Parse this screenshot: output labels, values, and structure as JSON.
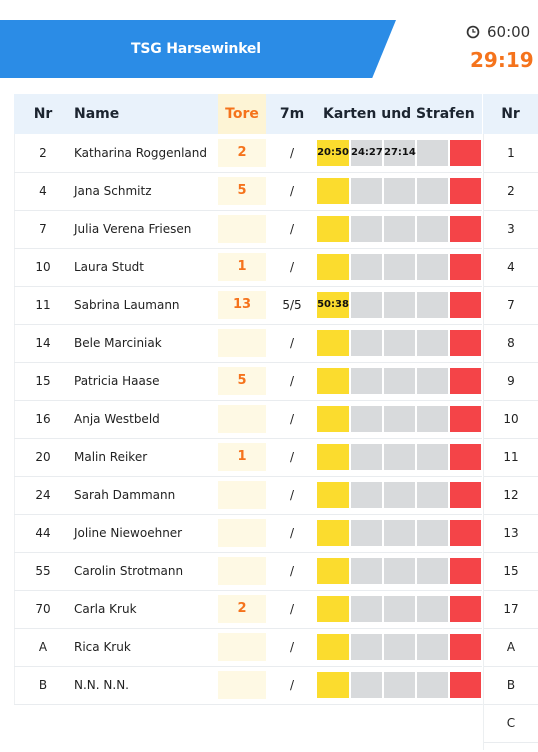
{
  "header": {
    "team_name": "TSG Harsewinkel",
    "total_time": "60:00",
    "current_time": "29:19",
    "clock_icon": "clock-icon",
    "accent": "#2b8ce6",
    "time_color": "#f5731c"
  },
  "table": {
    "headers": {
      "nr": "Nr",
      "name": "Name",
      "tore": "Tore",
      "seven_m": "7m",
      "cards": "Karten und Strafen"
    },
    "rows": [
      {
        "nr": "2",
        "name": "Katharina Roggenland",
        "tore": "2",
        "seven_m": "/",
        "yellow": "20:50",
        "p1": "24:27",
        "p2": "27:14",
        "p3": ""
      },
      {
        "nr": "4",
        "name": "Jana Schmitz",
        "tore": "5",
        "seven_m": "/",
        "yellow": "",
        "p1": "",
        "p2": "",
        "p3": ""
      },
      {
        "nr": "7",
        "name": "Julia Verena Friesen",
        "tore": "",
        "seven_m": "/",
        "yellow": "",
        "p1": "",
        "p2": "",
        "p3": ""
      },
      {
        "nr": "10",
        "name": "Laura Studt",
        "tore": "1",
        "seven_m": "/",
        "yellow": "",
        "p1": "",
        "p2": "",
        "p3": ""
      },
      {
        "nr": "11",
        "name": "Sabrina Laumann",
        "tore": "13",
        "seven_m": "5/5",
        "yellow": "50:38",
        "p1": "",
        "p2": "",
        "p3": ""
      },
      {
        "nr": "14",
        "name": "Bele Marciniak",
        "tore": "",
        "seven_m": "/",
        "yellow": "",
        "p1": "",
        "p2": "",
        "p3": ""
      },
      {
        "nr": "15",
        "name": "Patricia Haase",
        "tore": "5",
        "seven_m": "/",
        "yellow": "",
        "p1": "",
        "p2": "",
        "p3": ""
      },
      {
        "nr": "16",
        "name": "Anja Westbeld",
        "tore": "",
        "seven_m": "/",
        "yellow": "",
        "p1": "",
        "p2": "",
        "p3": ""
      },
      {
        "nr": "20",
        "name": "Malin Reiker",
        "tore": "1",
        "seven_m": "/",
        "yellow": "",
        "p1": "",
        "p2": "",
        "p3": ""
      },
      {
        "nr": "24",
        "name": "Sarah Dammann",
        "tore": "",
        "seven_m": "/",
        "yellow": "",
        "p1": "",
        "p2": "",
        "p3": ""
      },
      {
        "nr": "44",
        "name": "Joline Niewoehner",
        "tore": "",
        "seven_m": "/",
        "yellow": "",
        "p1": "",
        "p2": "",
        "p3": ""
      },
      {
        "nr": "55",
        "name": "Carolin Strotmann",
        "tore": "",
        "seven_m": "/",
        "yellow": "",
        "p1": "",
        "p2": "",
        "p3": ""
      },
      {
        "nr": "70",
        "name": "Carla Kruk",
        "tore": "2",
        "seven_m": "/",
        "yellow": "",
        "p1": "",
        "p2": "",
        "p3": ""
      },
      {
        "nr": "A",
        "name": "Rica Kruk",
        "tore": "",
        "seven_m": "/",
        "yellow": "",
        "p1": "",
        "p2": "",
        "p3": ""
      },
      {
        "nr": "B",
        "name": "N.N. N.N.",
        "tore": "",
        "seven_m": "/",
        "yellow": "",
        "p1": "",
        "p2": "",
        "p3": ""
      }
    ]
  },
  "right_column": {
    "header": "Nr",
    "values": [
      "1",
      "2",
      "3",
      "4",
      "7",
      "8",
      "9",
      "10",
      "11",
      "12",
      "13",
      "15",
      "17",
      "A",
      "B",
      "C"
    ]
  }
}
